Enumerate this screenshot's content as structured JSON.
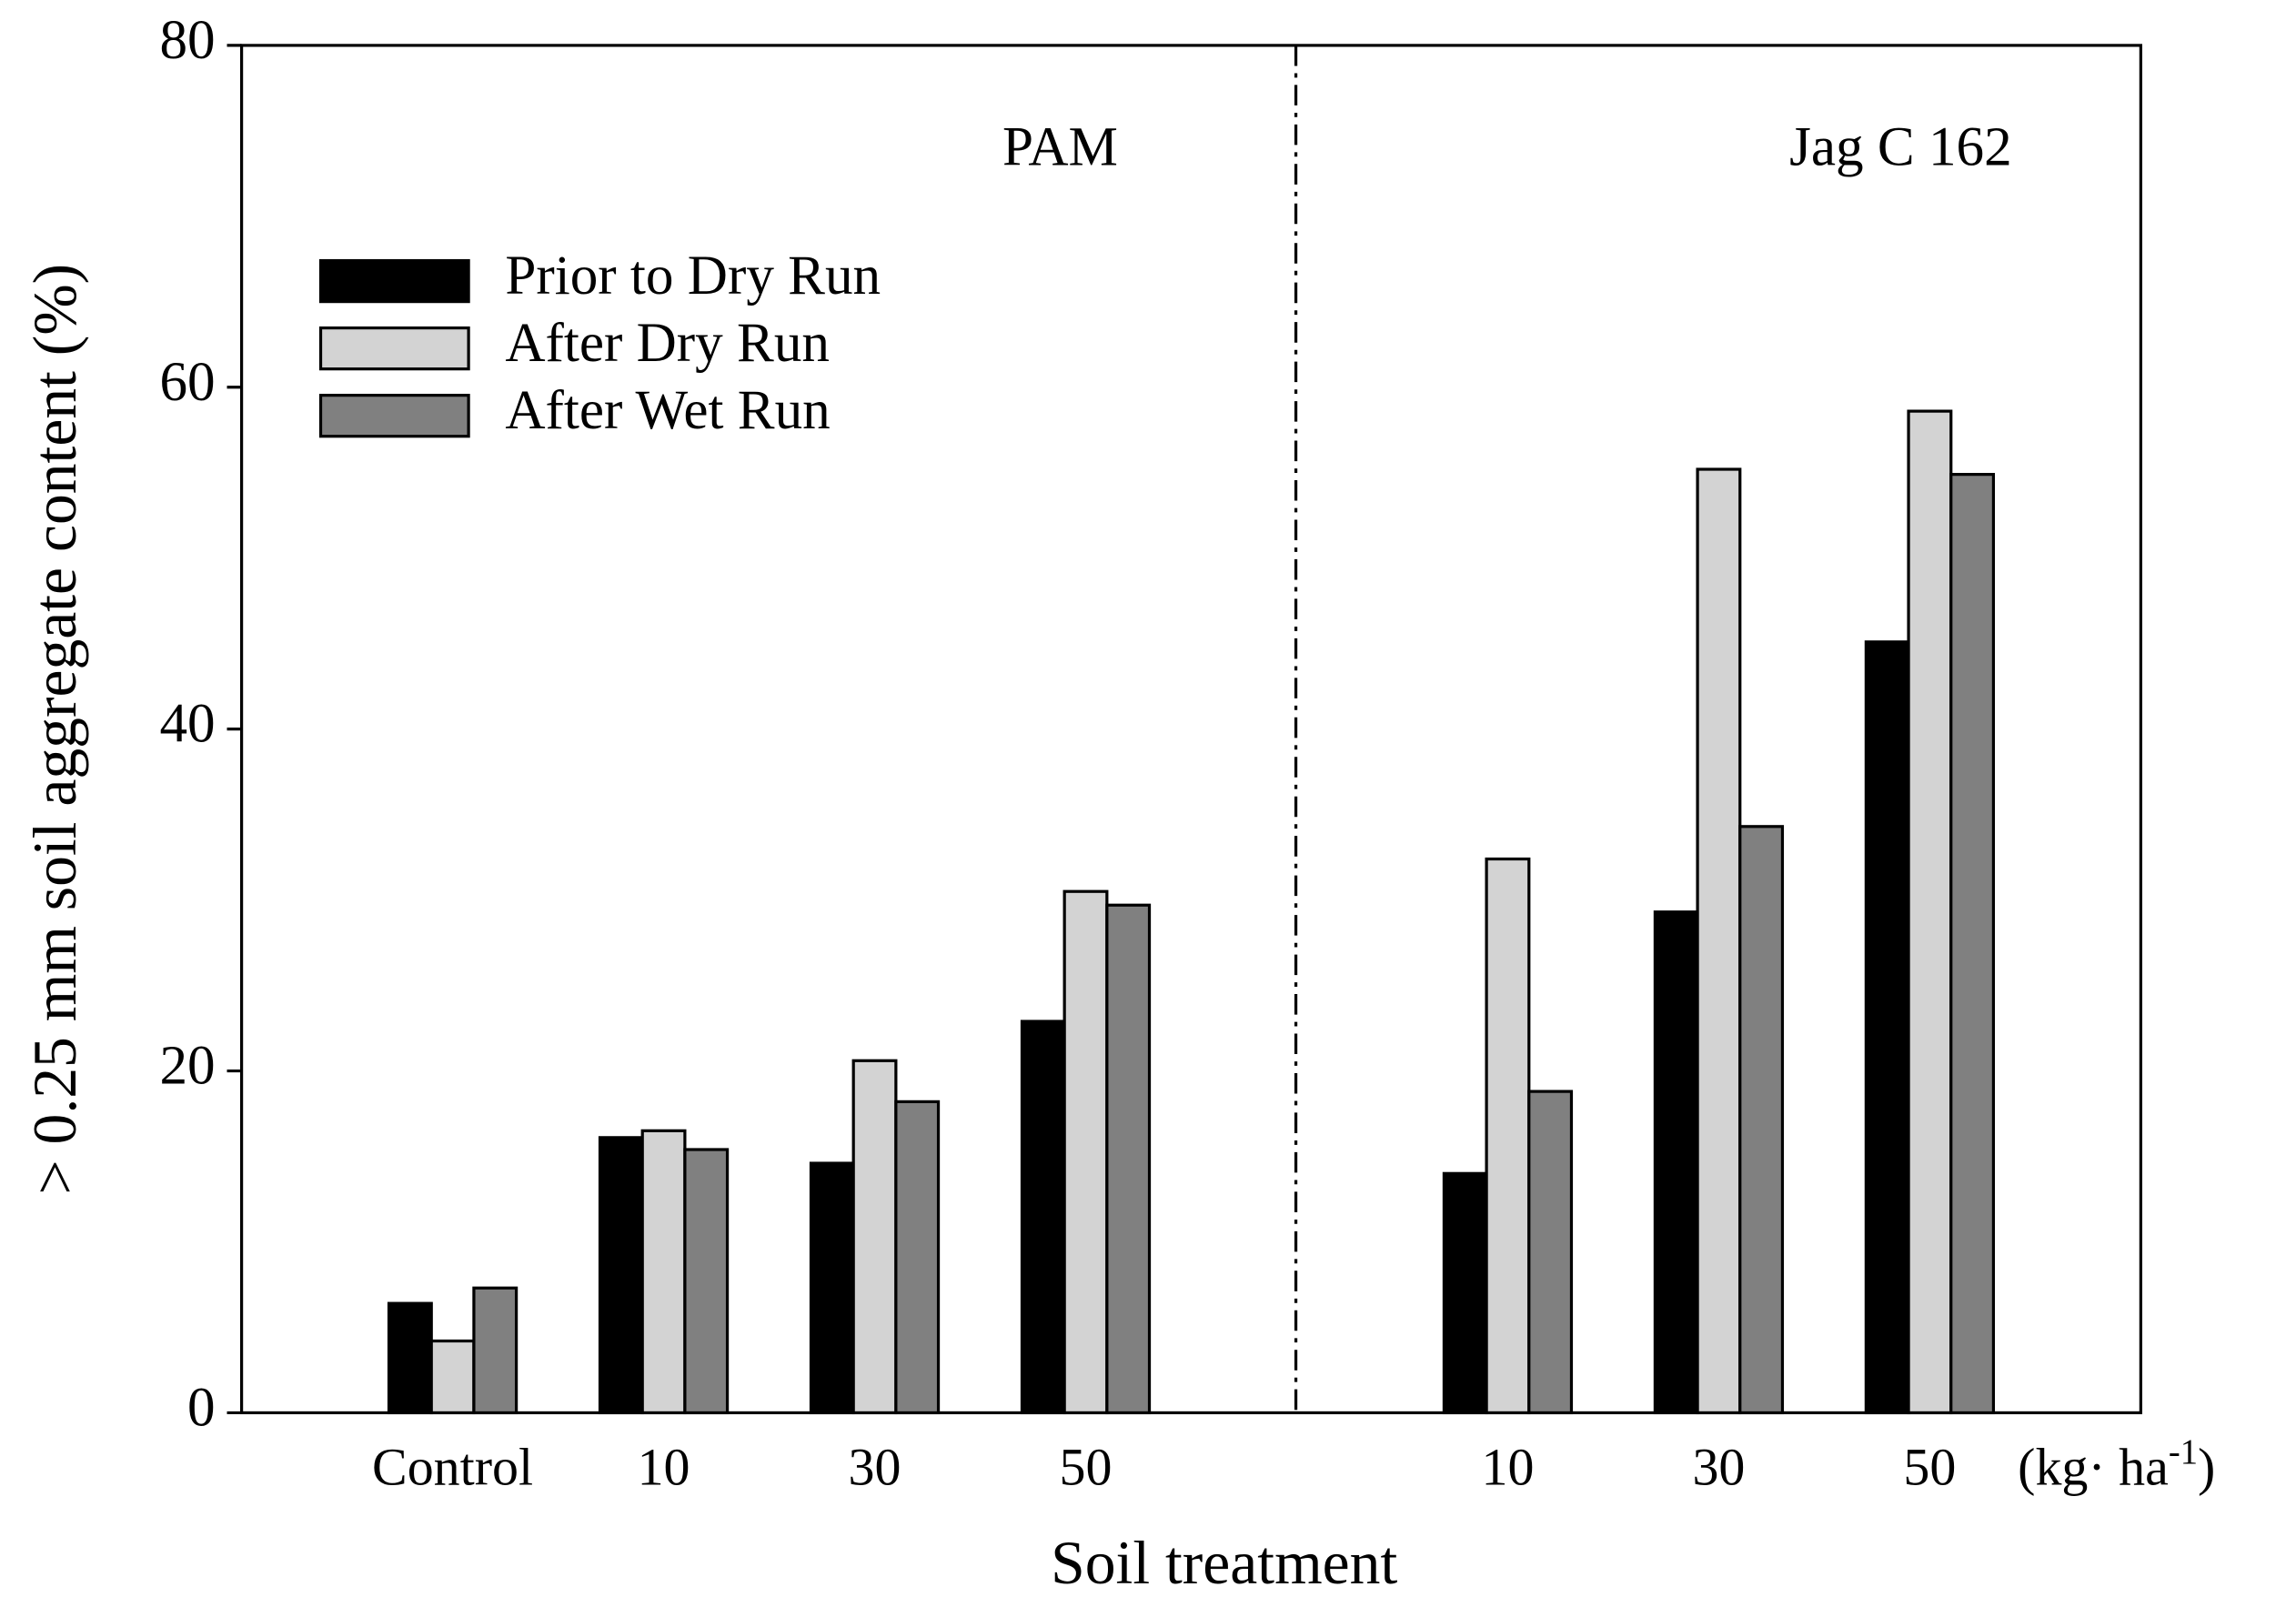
{
  "chart_data": {
    "type": "bar",
    "x_label": "Soil treatment",
    "y_label": "> 0.25 mm soil aggregate content (%)",
    "group_labels": [
      "PAM",
      "Jag C 162"
    ],
    "x_unit_parts": [
      "(kg· ha",
      "-1",
      ")"
    ],
    "categories": [
      "Control",
      "10",
      "30",
      "50",
      null,
      "10",
      "30",
      "50"
    ],
    "series": [
      {
        "name": "Prior to Dry Run",
        "color": "#000000",
        "values": [
          6.4,
          16.1,
          14.6,
          22.9,
          null,
          14.0,
          29.3,
          45.1
        ]
      },
      {
        "name": "After Dry Run",
        "color": "#d3d3d3",
        "values": [
          4.2,
          16.5,
          20.6,
          30.5,
          null,
          32.4,
          55.2,
          58.6
        ]
      },
      {
        "name": "After Wet Run",
        "color": "#808080",
        "values": [
          7.3,
          15.4,
          18.2,
          29.7,
          null,
          18.8,
          34.3,
          54.9
        ]
      }
    ],
    "ylim": [
      0,
      80
    ],
    "yticks": [
      0,
      20,
      40,
      60,
      80
    ],
    "legend": "upper left",
    "grid": false
  }
}
